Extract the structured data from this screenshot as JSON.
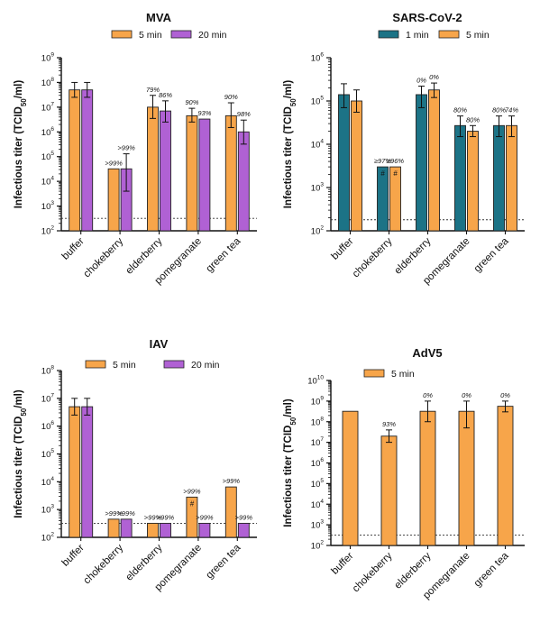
{
  "chart_data": [
    {
      "type": "bar",
      "title": "MVA",
      "ylabel": "Infectious titer (TCID50/ml)",
      "yscale": "log",
      "ylim": [
        100,
        1000000000
      ],
      "yticks": [
        2,
        3,
        4,
        5,
        6,
        7,
        8,
        9
      ],
      "detection_limit": 320,
      "categories": [
        "buffer",
        "chokeberry",
        "elderberry",
        "pomegranate",
        "green tea"
      ],
      "legend": "top",
      "series": [
        {
          "name": "5 min",
          "color": "#f7a54a",
          "values": [
            50000000,
            32000,
            10000000,
            4500000,
            4500000
          ],
          "err_low": [
            25000000,
            null,
            3500000,
            2500000,
            1500000
          ],
          "err_high": [
            100000000,
            null,
            30000000,
            9000000,
            15000000
          ],
          "labels": [
            "",
            ">99%",
            "79%",
            "90%",
            "90%"
          ],
          "hash": [
            false,
            false,
            false,
            false,
            false
          ]
        },
        {
          "name": "20 min",
          "color": "#b061d4",
          "values": [
            50000000,
            32000,
            7000000,
            3300000,
            1000000
          ],
          "err_low": [
            25000000,
            4000,
            2500000,
            null,
            320000
          ],
          "err_high": [
            100000000,
            130000,
            18000000,
            null,
            3000000
          ],
          "labels": [
            "",
            ">99%",
            "86%",
            "93%",
            "98%"
          ],
          "hash": [
            false,
            false,
            false,
            false,
            false
          ]
        }
      ]
    },
    {
      "type": "bar",
      "title": "SARS-CoV-2",
      "ylabel": "Infectious titer (TCID50/ml)",
      "yscale": "log",
      "ylim": [
        100,
        1000000
      ],
      "yticks": [
        2,
        3,
        4,
        5,
        6
      ],
      "detection_limit": 180,
      "categories": [
        "buffer",
        "chokeberry",
        "elderberry",
        "pomegranate",
        "green tea"
      ],
      "legend": "top",
      "series": [
        {
          "name": "1 min",
          "color": "#1c7386",
          "values": [
            140000,
            3000,
            140000,
            27000,
            27000
          ],
          "err_low": [
            70000,
            null,
            70000,
            15000,
            15000
          ],
          "err_high": [
            250000,
            null,
            220000,
            45000,
            45000
          ],
          "labels": [
            "",
            "≥97%",
            "0%",
            "80%",
            "80%"
          ],
          "hash": [
            false,
            true,
            false,
            false,
            false
          ]
        },
        {
          "name": "5 min",
          "color": "#f7a54a",
          "values": [
            100000,
            3000,
            180000,
            20000,
            27000
          ],
          "err_low": [
            55000,
            null,
            120000,
            15000,
            15000
          ],
          "err_high": [
            180000,
            null,
            260000,
            27000,
            45000
          ],
          "labels": [
            "",
            "≥96%",
            "0%",
            "80%",
            "74%"
          ],
          "hash": [
            false,
            true,
            false,
            false,
            false
          ]
        }
      ]
    },
    {
      "type": "bar",
      "title": "IAV",
      "ylabel": "Infectious titer (TCID50/ml)",
      "yscale": "log",
      "ylim": [
        100,
        100000000
      ],
      "yticks": [
        2,
        3,
        4,
        5,
        6,
        7,
        8
      ],
      "detection_limit": 320,
      "categories": [
        "buffer",
        "chokeberry",
        "elderberry",
        "pomegranate",
        "green tea"
      ],
      "legend": "top",
      "series": [
        {
          "name": "5 min",
          "color": "#f7a54a",
          "values": [
            5000000,
            450,
            320,
            2800,
            6500
          ],
          "err_low": [
            2500000,
            null,
            null,
            null,
            null
          ],
          "err_high": [
            10000000,
            null,
            null,
            null,
            null
          ],
          "labels": [
            "",
            ">99%",
            ">99%",
            ">99%",
            ">99%"
          ],
          "hash": [
            false,
            false,
            false,
            true,
            false
          ]
        },
        {
          "name": "20 min",
          "color": "#b061d4",
          "values": [
            5000000,
            450,
            320,
            320,
            320
          ],
          "err_low": [
            2500000,
            null,
            null,
            null,
            null
          ],
          "err_high": [
            10000000,
            null,
            null,
            null,
            null
          ],
          "labels": [
            "",
            ">99%",
            ">99%",
            ">99%",
            ">99%"
          ],
          "hash": [
            false,
            false,
            false,
            false,
            false
          ]
        }
      ]
    },
    {
      "type": "bar",
      "title": "AdV5",
      "ylabel": "Infectious titer (TCID50/ml)",
      "yscale": "log",
      "ylim": [
        100,
        10000000000
      ],
      "yticks": [
        2,
        3,
        4,
        5,
        6,
        7,
        8,
        9,
        10
      ],
      "detection_limit": 320,
      "categories": [
        "buffer",
        "chokeberry",
        "elderberry",
        "pomegranate",
        "green tea"
      ],
      "legend": "top",
      "series": [
        {
          "name": "5 min",
          "color": "#f7a54a",
          "values": [
            320000000,
            20000000,
            320000000,
            320000000,
            560000000
          ],
          "err_low": [
            null,
            10000000,
            100000000,
            50000000,
            300000000
          ],
          "err_high": [
            null,
            40000000,
            1000000000,
            1000000000,
            1000000000
          ],
          "labels": [
            "",
            "93%",
            "0%",
            "0%",
            "0%"
          ],
          "hash": [
            false,
            false,
            false,
            false,
            false
          ]
        }
      ]
    }
  ]
}
